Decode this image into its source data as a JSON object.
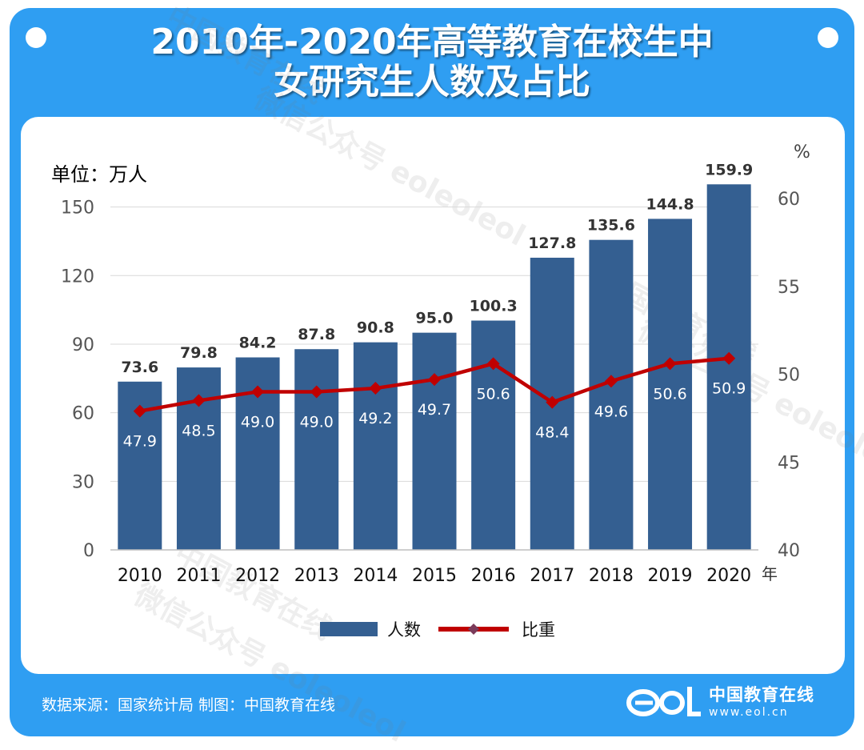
{
  "header": {
    "title_line1": "2010年-2020年高等教育在校生中",
    "title_line2": "女研究生人数及占比"
  },
  "unit_label": "单位：万人",
  "right_axis_unit": "%",
  "x_axis_suffix": "年",
  "footer": {
    "source": "数据来源：国家统计局  制图：中国教育在线",
    "brand_name": "中国教育在线",
    "brand_url": "www.eol.cn"
  },
  "watermarks": [
    "中国教育在线",
    "微信公众号 eoleoleol"
  ],
  "chart_data": {
    "type": "bar",
    "categories": [
      "2010",
      "2011",
      "2012",
      "2013",
      "2014",
      "2015",
      "2016",
      "2017",
      "2018",
      "2019",
      "2020"
    ],
    "series": [
      {
        "name": "人数",
        "type": "bar",
        "axis": "left",
        "color": "#345f91",
        "values": [
          73.6,
          79.8,
          84.2,
          87.8,
          90.8,
          95.0,
          100.3,
          127.8,
          135.6,
          144.8,
          159.9
        ]
      },
      {
        "name": "比重",
        "type": "line",
        "axis": "right",
        "color": "#c00000",
        "values": [
          47.9,
          48.5,
          49.0,
          49.0,
          49.2,
          49.7,
          50.6,
          48.4,
          49.6,
          50.6,
          50.9
        ]
      }
    ],
    "y_left": {
      "min": 0,
      "max": 160,
      "ticks": [
        0,
        30,
        60,
        90,
        120,
        150
      ]
    },
    "y_right": {
      "min": 40,
      "max": 60,
      "ticks": [
        40,
        45,
        50,
        55,
        60
      ]
    },
    "grid": true,
    "legend_position": "bottom"
  }
}
